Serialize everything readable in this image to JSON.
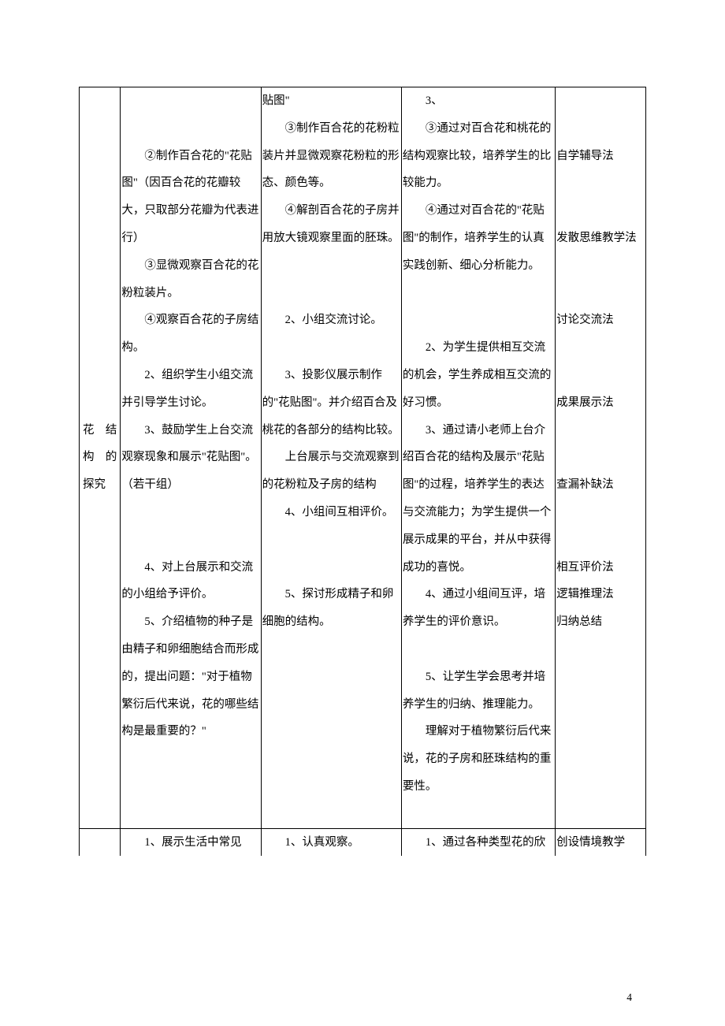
{
  "row1": {
    "sectionLabel": "花结构的探究",
    "col2": {
      "p1": "②制作百合花的\"花贴图\"（因百合花的花瓣较大，只取部分花瓣为代表进行）",
      "p2": "③显微观察百合花的花粉粒装片。",
      "p3": "④观察百合花的子房结构。",
      "p4": "2、组织学生小组交流并引导学生讨论。",
      "p5": "3、鼓励学生上台交流观察现象和展示\"花贴图\"。（若干组）",
      "p6": "4、对上台展示和交流的小组给予评价。",
      "p7": "5、介绍植物的种子是由精子和卵细胞结合而形成的，提出问题：\"对于植物繁衍后代来说，花的哪些结构是最重要的？\""
    },
    "col3": {
      "p0": "贴图\"",
      "p1": "③制作百合花的花粉粒装片并显微观察花粉粒的形态、颜色等。",
      "p2": "④解剖百合花的子房并用放大镜观察里面的胚珠。",
      "p3": "2、小组交流讨论。",
      "p4": "3、投影仪展示制作的\"花贴图\"。并介绍百合及桃花的各部分的结构比较。",
      "p5": "上台展示与交流观察到的花粉粒及子房的结构",
      "p6": "4、小组间互相评价。",
      "p7": "5、探讨形成精子和卵细胞的结构。"
    },
    "col4": {
      "p0": "3、",
      "p1": "③通过对百合花和桃花的结构观察比较，培养学生的比较能力。",
      "p2": "④通过对百合花的\"花贴图\"的制作，培养学生的认真实践创新、细心分析能力。",
      "p3": "2、为学生提供相互交流的机会，学生养成相互交流的好习惯。",
      "p4": "3、通过请小老师上台介绍百合花的结构及展示\"花贴图\"的过程，培养学生的表达与交流能力；为学生提供一个展示成果的平台，并从中获得成功的喜悦。",
      "p5": "4、通过小组间互评，培养学生的评价意识。",
      "p6": "5、让学生学会思考并培养学生的归纳、推理能力。",
      "p7": "理解对于植物繁衍后代来说，花的子房和胚珠结构的重要性。"
    },
    "col5": {
      "m1": "自学辅导法",
      "m2": "发散思维教学法",
      "m3": "讨论交流法",
      "m4": "成果展示法",
      "m5": "查漏补缺法",
      "m6": "相互评价法",
      "m7": "逻辑推理法",
      "m8": "归纳总结"
    }
  },
  "row2": {
    "col2": "1、展示生活中常见",
    "col3": "1、认真观察。",
    "col4": "1、通过各种类型花的欣",
    "col5": "创设情境教学"
  },
  "pageNumber": "4"
}
